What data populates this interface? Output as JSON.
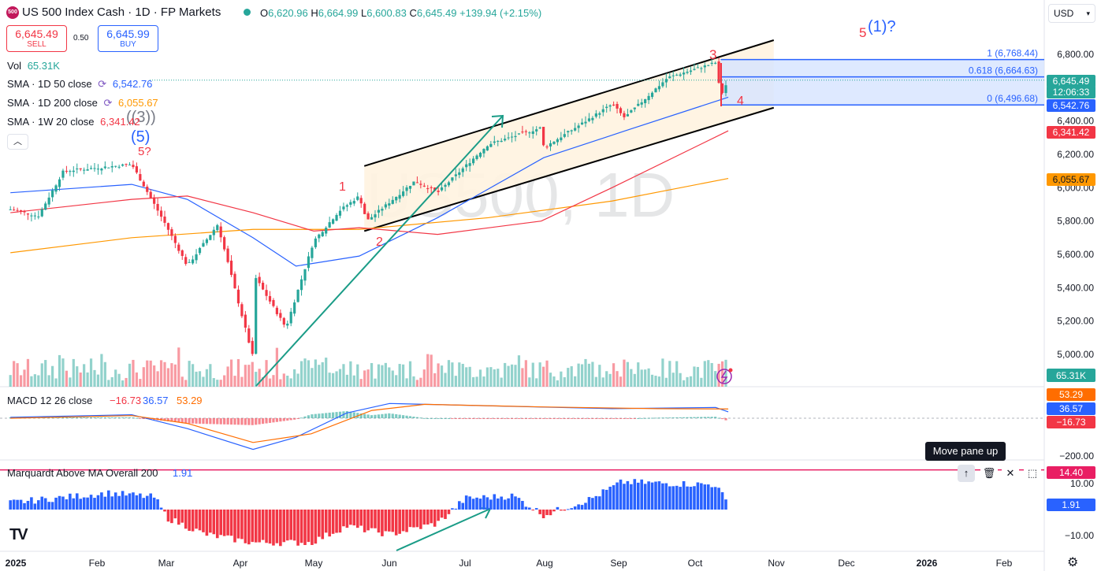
{
  "header": {
    "logo_text": "500",
    "title": "US 500 Index Cash · 1D · FP Markets",
    "open_label": "O",
    "open": "6,620.96",
    "high_label": "H",
    "high": "6,664.99",
    "low_label": "L",
    "low": "6,600.83",
    "close_label": "C",
    "close": "6,645.49",
    "change": "+139.94 (+2.15%)"
  },
  "trade": {
    "sell_price": "6,645.49",
    "sell_label": "SELL",
    "spread": "0.50",
    "buy_price": "6,645.99",
    "buy_label": "BUY"
  },
  "legend": {
    "vol_label": "Vol",
    "vol_value": "65.31K",
    "sma50_label": "SMA · 1D 50 close",
    "sma50_value": "6,542.76",
    "sma200_label": "SMA · 1D 200 close",
    "sma200_value": "6,055.67",
    "sma1w_label": "SMA · 1W 20 close",
    "sma1w_value": "6,341.42",
    "collapse_icon": "chevron-up-icon"
  },
  "currency": "USD",
  "tooltip": "Move pane up",
  "colors": {
    "up": "#26a69a",
    "down": "#f23645",
    "sma50": "#2962ff",
    "sma200": "#ff9800",
    "sma1w": "#f23645",
    "macd": "#2962ff",
    "signal": "#ff6d00",
    "marquardt_up": "#2962ff",
    "marquardt_down": "#f23645",
    "channel_fill": "#fff3e0",
    "fib_fill": "#d6e4ff",
    "trend_arrow": "#1a9c87"
  },
  "chart_data": [
    {
      "type": "candlestick",
      "title": "US 500 Index Cash · 1D · FP Markets",
      "watermark": "US500, 1D",
      "x_ticks": [
        "2025",
        "Feb",
        "Mar",
        "Apr",
        "May",
        "Jun",
        "Jul",
        "Aug",
        "Sep",
        "Oct",
        "Nov",
        "Dec",
        "2026",
        "Feb"
      ],
      "y_ticks": [
        "6,800.00",
        "6,600.00",
        "6,400.00",
        "6,200.00",
        "6,000.00",
        "5,800.00",
        "5,600.00",
        "5,400.00",
        "5,200.00",
        "5,000.00"
      ],
      "ylim": [
        4850,
        6900
      ],
      "price_path": [
        [
          "2025-01-02",
          5870
        ],
        [
          "2025-01-13",
          5830
        ],
        [
          "2025-01-23",
          6100
        ],
        [
          "2025-02-19",
          6140
        ],
        [
          "2025-03-04",
          5790
        ],
        [
          "2025-03-13",
          5530
        ],
        [
          "2025-03-25",
          5780
        ],
        [
          "2025-04-08",
          4980
        ],
        [
          "2025-04-09",
          5460
        ],
        [
          "2025-04-21",
          5160
        ],
        [
          "2025-05-02",
          5680
        ],
        [
          "2025-05-12",
          5860
        ],
        [
          "2025-05-20",
          5950
        ],
        [
          "2025-05-23",
          5800
        ],
        [
          "2025-06-11",
          6040
        ],
        [
          "2025-06-20",
          5970
        ],
        [
          "2025-07-10",
          6260
        ],
        [
          "2025-07-31",
          6360
        ],
        [
          "2025-08-01",
          6240
        ],
        [
          "2025-08-28",
          6500
        ],
        [
          "2025-09-02",
          6420
        ],
        [
          "2025-09-19",
          6660
        ],
        [
          "2025-10-08",
          6750
        ],
        [
          "2025-10-10",
          6550
        ],
        [
          "2025-10-13",
          6645.49
        ]
      ],
      "moving_averages": [
        {
          "name": "SMA · 1D 50 close",
          "color": "#2962ff",
          "last": 6542.76,
          "points": [
            [
              "2025-01-02",
              5970
            ],
            [
              "2025-02-19",
              6020
            ],
            [
              "2025-03-13",
              5930
            ],
            [
              "2025-04-08",
              5700
            ],
            [
              "2025-04-25",
              5530
            ],
            [
              "2025-05-20",
              5590
            ],
            [
              "2025-06-20",
              5820
            ],
            [
              "2025-08-01",
              6180
            ],
            [
              "2025-09-02",
              6340
            ],
            [
              "2025-10-13",
              6542.76
            ]
          ]
        },
        {
          "name": "SMA · 1D 200 close",
          "color": "#ff9800",
          "last": 6055.67,
          "points": [
            [
              "2025-01-02",
              5610
            ],
            [
              "2025-02-19",
              5700
            ],
            [
              "2025-04-08",
              5750
            ],
            [
              "2025-05-20",
              5750
            ],
            [
              "2025-07-10",
              5820
            ],
            [
              "2025-08-28",
              5920
            ],
            [
              "2025-10-13",
              6055.67
            ]
          ]
        },
        {
          "name": "SMA · 1W 20 close",
          "color": "#f23645",
          "last": 6341.42,
          "points": [
            [
              "2025-01-02",
              5850
            ],
            [
              "2025-02-19",
              5930
            ],
            [
              "2025-03-13",
              5950
            ],
            [
              "2025-04-08",
              5850
            ],
            [
              "2025-05-02",
              5740
            ],
            [
              "2025-05-20",
              5760
            ],
            [
              "2025-06-20",
              5720
            ],
            [
              "2025-07-31",
              5800
            ],
            [
              "2025-08-28",
              6000
            ],
            [
              "2025-10-13",
              6341.42
            ]
          ]
        }
      ],
      "price_labels": [
        {
          "text": "6,645.49",
          "value": 6645.49,
          "color": "#26a69a"
        },
        {
          "text": "12:06:33",
          "value": 6620,
          "color": "#26a69a"
        },
        {
          "text": "6,542.76",
          "value": 6542.76,
          "color": "#2962ff"
        },
        {
          "text": "6,341.42",
          "value": 6341.42,
          "color": "#f23645"
        },
        {
          "text": "6,055.67",
          "value": 6055.67,
          "color": "#ff9800"
        }
      ],
      "fibonacci": [
        {
          "label": "1 (6,768.44)",
          "value": 6768.44
        },
        {
          "label": "0.618 (6,664.63)",
          "value": 6664.63
        },
        {
          "label": "0 (6,496.68)",
          "value": 6496.68
        }
      ],
      "wave_labels": [
        {
          "text": "((3))",
          "color": "#787b86"
        },
        {
          "text": "(5)",
          "color": "#2962ff"
        },
        {
          "text": "5?",
          "color": "#f23645"
        },
        {
          "text": "1",
          "color": "#f23645"
        },
        {
          "text": "2",
          "color": "#f23645"
        },
        {
          "text": "3",
          "color": "#f23645"
        },
        {
          "text": "4",
          "color": "#f23645"
        },
        {
          "text": "5",
          "color": "#f23645"
        },
        {
          "text": "(1)?",
          "color": "#2962ff"
        }
      ],
      "volume_last": "65.31K"
    },
    {
      "type": "line",
      "title": "MACD 12 26 close",
      "values": {
        "histogram": -16.73,
        "macd": 36.57,
        "signal": 53.29
      },
      "value_text": {
        "histogram": "−16.73",
        "macd": "36.57",
        "signal": "53.29"
      },
      "y_ticks": [
        "−200.00"
      ],
      "macd_path": [
        [
          "2025-01-02",
          5
        ],
        [
          "2025-02-19",
          20
        ],
        [
          "2025-03-13",
          -60
        ],
        [
          "2025-04-08",
          -180
        ],
        [
          "2025-04-25",
          -110
        ],
        [
          "2025-05-15",
          30
        ],
        [
          "2025-06-01",
          85
        ],
        [
          "2025-07-15",
          70
        ],
        [
          "2025-08-28",
          55
        ],
        [
          "2025-10-08",
          62
        ],
        [
          "2025-10-13",
          36.57
        ]
      ],
      "signal_path": [
        [
          "2025-01-02",
          0
        ],
        [
          "2025-02-19",
          15
        ],
        [
          "2025-03-13",
          -30
        ],
        [
          "2025-04-08",
          -140
        ],
        [
          "2025-05-01",
          -90
        ],
        [
          "2025-05-25",
          45
        ],
        [
          "2025-06-15",
          80
        ],
        [
          "2025-08-01",
          65
        ],
        [
          "2025-09-15",
          55
        ],
        [
          "2025-10-13",
          53.29
        ]
      ]
    },
    {
      "type": "bar",
      "title": "Marquardt Above MA Overall 200",
      "value": "1.91",
      "y_ticks": [
        "10.00",
        "−10.00"
      ],
      "level_label": "14.40",
      "level": 14.4,
      "segments": [
        [
          "2025-01-02",
          2.5
        ],
        [
          "2025-02-10",
          6
        ],
        [
          "2025-02-28",
          4.5
        ],
        [
          "2025-03-05",
          -3
        ],
        [
          "2025-03-20",
          -9
        ],
        [
          "2025-04-08",
          -12
        ],
        [
          "2025-05-01",
          -12
        ],
        [
          "2025-05-15",
          -6
        ],
        [
          "2025-06-01",
          -9
        ],
        [
          "2025-06-20",
          -5
        ],
        [
          "2025-07-01",
          4
        ],
        [
          "2025-07-20",
          5
        ],
        [
          "2025-08-01",
          -2
        ],
        [
          "2025-08-20",
          4
        ],
        [
          "2025-09-01",
          10
        ],
        [
          "2025-10-08",
          9
        ],
        [
          "2025-10-13",
          1.91
        ]
      ]
    }
  ]
}
